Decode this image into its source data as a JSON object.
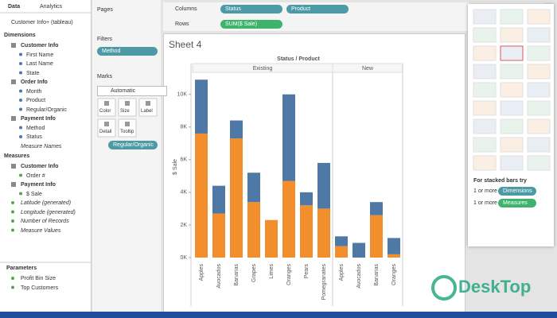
{
  "data_pane": {
    "tabs": [
      "Data",
      "Analytics"
    ],
    "source": "Customer Info+ (tableau)",
    "dimensions_title": "Dimensions",
    "dimensions": [
      {
        "folder": "Customer Info",
        "fields": [
          "First Name",
          "Last Name",
          "State"
        ]
      },
      {
        "folder": "Order Info",
        "fields": [
          "Month",
          "Product",
          "Regular/Organic"
        ]
      },
      {
        "folder": "Payment Info",
        "fields": [
          "Method",
          "Status"
        ]
      }
    ],
    "extra_dimension": "Measure Names",
    "measures_title": "Measures",
    "measures": [
      {
        "folder": "Customer Info",
        "fields": [
          "Order #"
        ]
      },
      {
        "folder": "Payment Info",
        "fields": [
          "$ Sale"
        ]
      }
    ],
    "extra_measures": [
      "Latitude (generated)",
      "Longitude (generated)",
      "Number of Records",
      "Measure Values"
    ],
    "parameters_title": "Parameters",
    "parameters": [
      "Profit Bin Size",
      "Top Customers"
    ]
  },
  "cards": {
    "pages": "Pages",
    "filters": "Filters",
    "filter_pill": "Method",
    "marks": "Marks",
    "mark_type": "Automatic",
    "mark_buttons": [
      "Color",
      "Size",
      "Label",
      "Detail",
      "Tooltip"
    ],
    "color_pill": "Regular/Organic"
  },
  "shelves": {
    "columns_label": "Columns",
    "columns": [
      "Status",
      "Product"
    ],
    "rows_label": "Rows",
    "rows": [
      "SUM($ Sale)"
    ]
  },
  "sheet_title": "Sheet 4",
  "chart_data": {
    "type": "bar",
    "stacked": true,
    "title": "Status / Product",
    "y_label": "$ Sale",
    "ylim": [
      0,
      11300
    ],
    "yticks": [
      {
        "value": 0,
        "label": "0K"
      },
      {
        "value": 2000,
        "label": "2K"
      },
      {
        "value": 4000,
        "label": "4K"
      },
      {
        "value": 6000,
        "label": "6K"
      },
      {
        "value": 8000,
        "label": "8K"
      },
      {
        "value": 10000,
        "label": "10K"
      }
    ],
    "panes": [
      {
        "header": "Existing",
        "categories": [
          "Apples",
          "Avocados",
          "Bananas",
          "Grapes",
          "Limes",
          "Oranges",
          "Pears",
          "Pomegranates"
        ],
        "series": [
          {
            "color": "#f28e2b",
            "values": [
              7600,
              2700,
              7300,
              3400,
              2300,
              4700,
              3200,
              3000
            ]
          },
          {
            "color": "#4e79a7",
            "values": [
              3300,
              1700,
              1100,
              1800,
              0,
              5300,
              800,
              2800
            ]
          }
        ]
      },
      {
        "header": "New",
        "categories": [
          "Apples",
          "Avocados",
          "Bananas",
          "Oranges"
        ],
        "series": [
          {
            "color": "#f28e2b",
            "values": [
              700,
              0,
              2600,
              200
            ]
          },
          {
            "color": "#4e79a7",
            "values": [
              600,
              900,
              800,
              1000
            ]
          }
        ]
      }
    ]
  },
  "show_me": {
    "hint": "For stacked bars try",
    "requirements": [
      {
        "text": "1 or more",
        "pill": "Dimensions"
      },
      {
        "text": "1 or more",
        "pill": "Measures"
      }
    ]
  },
  "watermark": "DeskTop"
}
